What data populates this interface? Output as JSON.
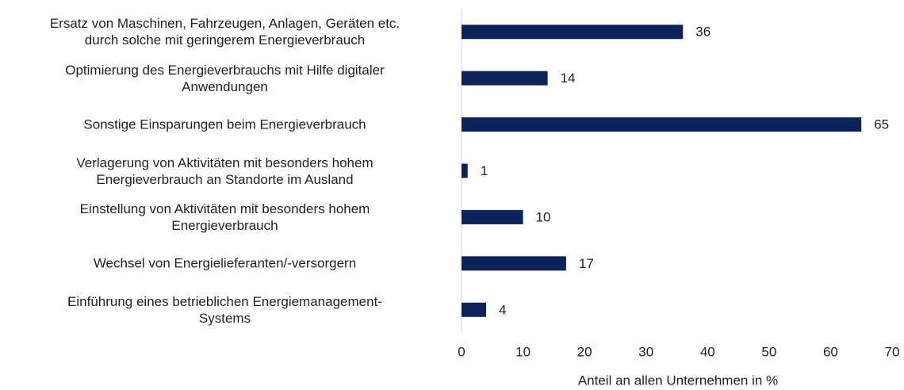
{
  "chart_data": {
    "type": "bar",
    "orientation": "horizontal",
    "categories": [
      "Ersatz von Maschinen, Fahrzeugen, Anlagen, Geräten etc.\ndurch solche mit geringerem Energieverbrauch",
      "Optimierung des Energieverbrauchs mit Hilfe digitaler\nAnwendungen",
      "Sonstige Einsparungen beim Energieverbrauch",
      "Verlagerung von Aktivitäten mit besonders hohem\nEnergieverbrauch an Standorte im Ausland",
      "Einstellung von Aktivitäten mit besonders hohem\nEnergieverbrauch",
      "Wechsel von Energielieferanten/-versorgern",
      "Einführung eines betrieblichen Energiemanagement-\nSystems"
    ],
    "values": [
      36,
      14,
      65,
      1,
      10,
      17,
      4
    ],
    "color": "#0c2259",
    "xlabel": "Anteil an allen Unternehmen  in %",
    "xlim": [
      0,
      70
    ],
    "xticks": [
      0,
      10,
      20,
      30,
      40,
      50,
      60,
      70
    ],
    "grid": false
  }
}
